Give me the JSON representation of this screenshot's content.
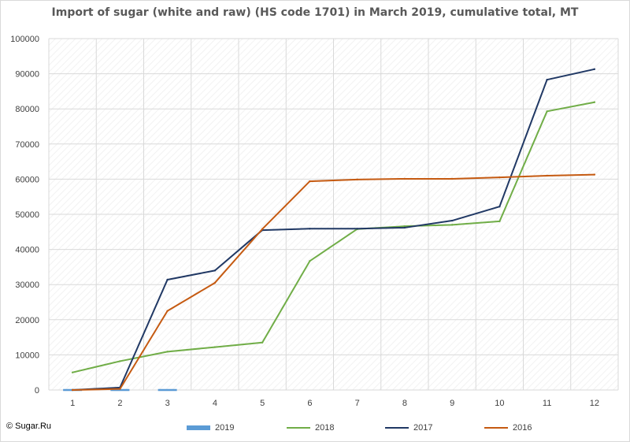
{
  "chart_data": {
    "type": "line",
    "title": "Import of sugar (white and raw) (HS code 1701) in March 2019, cumulative total, MT",
    "xlabel": "",
    "ylabel": "",
    "categories": [
      "1",
      "2",
      "3",
      "4",
      "5",
      "6",
      "7",
      "8",
      "9",
      "10",
      "11",
      "12"
    ],
    "ylim": [
      0,
      100000
    ],
    "yticks": [
      "0",
      "10000",
      "20000",
      "30000",
      "40000",
      "50000",
      "60000",
      "70000",
      "80000",
      "90000",
      "100000"
    ],
    "grid": true,
    "legend_position": "bottom",
    "series": [
      {
        "name": "2019",
        "color": "#5b9bd5",
        "values": [
          0,
          0,
          0,
          null,
          null,
          null,
          null,
          null,
          null,
          null,
          null,
          null
        ]
      },
      {
        "name": "2018",
        "color": "#70ad47",
        "values": [
          5000,
          8200,
          10900,
          12200,
          13500,
          36700,
          45800,
          46600,
          47000,
          48000,
          79300,
          81900
        ]
      },
      {
        "name": "2017",
        "color": "#203864",
        "values": [
          0,
          700,
          31400,
          34000,
          45500,
          45900,
          45900,
          46200,
          48200,
          52200,
          88300,
          91300
        ]
      },
      {
        "name": "2016",
        "color": "#c55a11",
        "values": [
          0,
          300,
          22500,
          30500,
          45800,
          59400,
          59900,
          60100,
          60100,
          60500,
          61000,
          61300
        ]
      }
    ]
  },
  "copyright": "© Sugar.Ru"
}
